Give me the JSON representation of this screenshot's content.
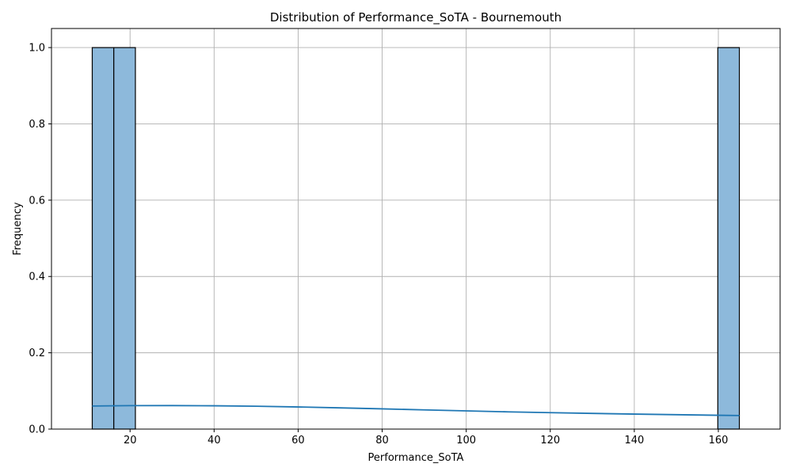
{
  "chart_data": {
    "type": "bar",
    "subtype": "histogram-with-kde",
    "title": "Distribution of Performance_SoTA - Bournemouth",
    "xlabel": "Performance_SoTA",
    "ylabel": "Frequency",
    "xlim": [
      1.3,
      174.7
    ],
    "ylim": [
      0,
      1.05
    ],
    "x_ticks": [
      20,
      40,
      60,
      80,
      100,
      120,
      140,
      160
    ],
    "y_ticks": [
      0.0,
      0.2,
      0.4,
      0.6,
      0.8,
      1.0
    ],
    "grid": true,
    "bars": [
      {
        "x_start": 11,
        "x_end": 16.13,
        "value": 1
      },
      {
        "x_start": 16.13,
        "x_end": 21.27,
        "value": 1
      },
      {
        "x_start": 159.87,
        "x_end": 165,
        "value": 1
      }
    ],
    "kde": {
      "x": [
        11,
        20,
        30,
        40,
        50,
        60,
        70,
        80,
        90,
        100,
        110,
        120,
        130,
        140,
        150,
        160,
        165
      ],
      "y": [
        0.0605,
        0.0615,
        0.0616,
        0.0611,
        0.06,
        0.058,
        0.0556,
        0.053,
        0.0503,
        0.0477,
        0.0452,
        0.043,
        0.0411,
        0.0393,
        0.0377,
        0.0362,
        0.0355
      ]
    },
    "colors": {
      "bar_fill": "#8db9db",
      "bar_edge": "#000000",
      "kde_line": "#1f77b4",
      "grid": "#b0b0b0"
    }
  }
}
